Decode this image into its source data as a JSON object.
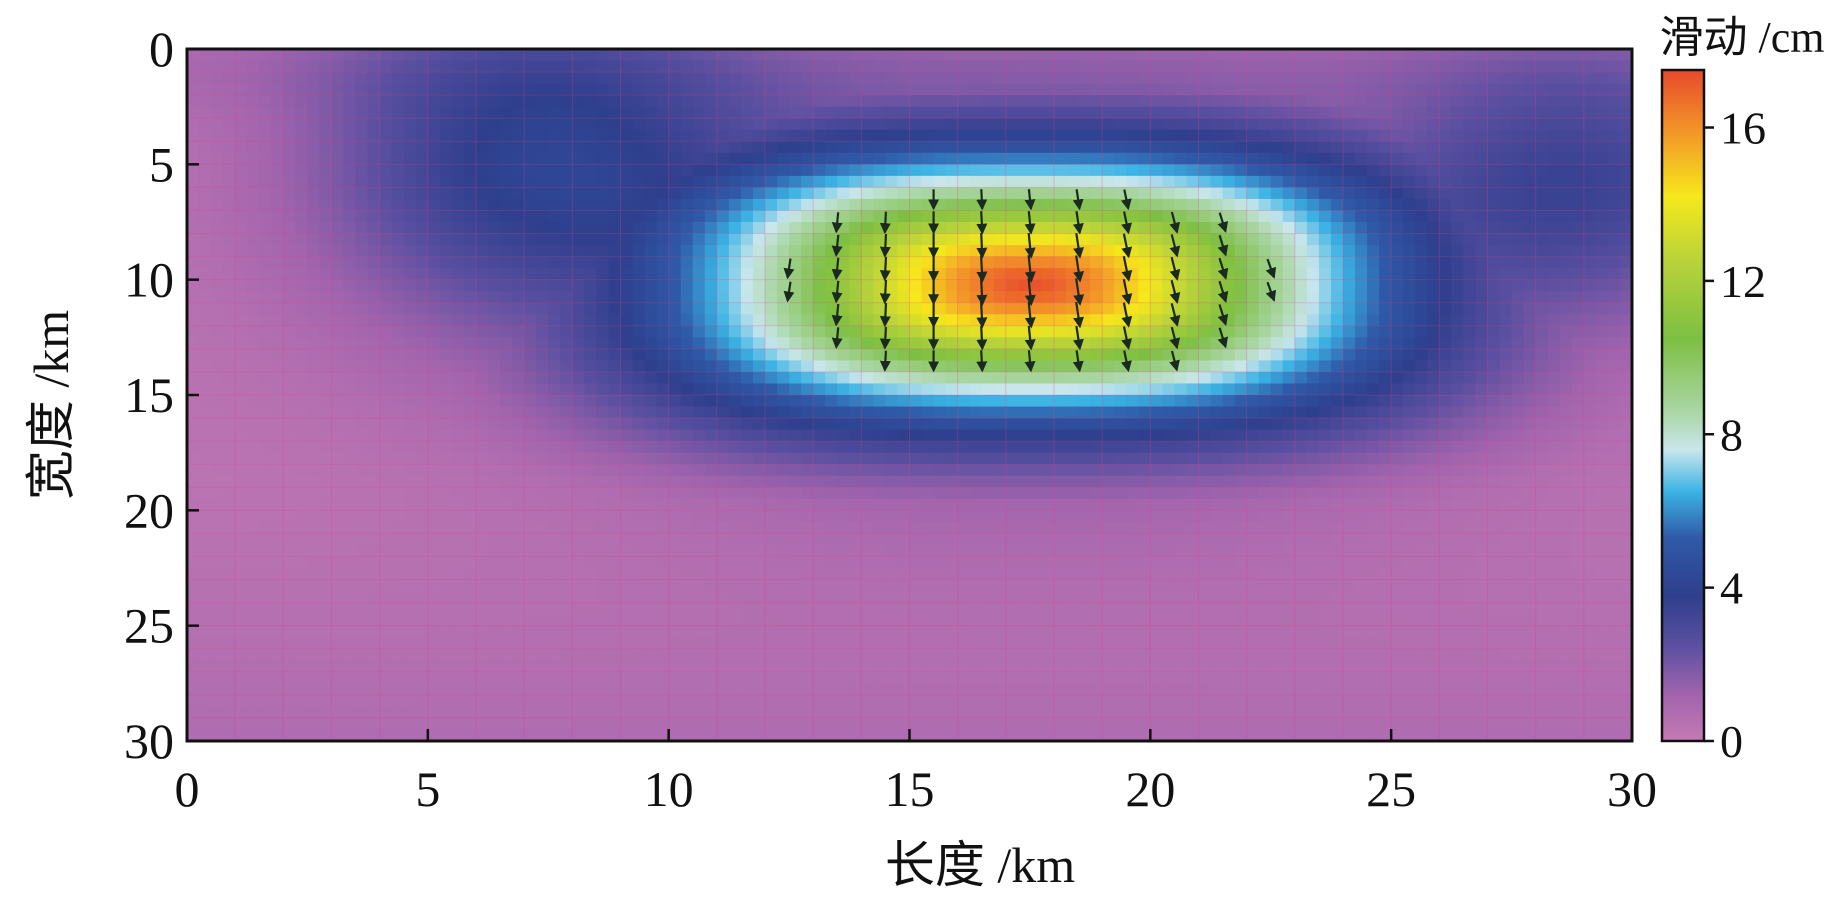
{
  "chart_data": {
    "type": "heatmap",
    "xlabel": "长度 /km",
    "ylabel": "宽度 /km",
    "colorbar_label": "滑动 /cm",
    "xlim": [
      0,
      30
    ],
    "ylim": [
      0,
      30
    ],
    "y_inverted": true,
    "x_ticks": [
      "0",
      "5",
      "10",
      "15",
      "20",
      "25",
      "30"
    ],
    "y_ticks": [
      "0",
      "5",
      "10",
      "15",
      "20",
      "25",
      "30"
    ],
    "colorbar_range": [
      0,
      17.5
    ],
    "colorbar_ticks": [
      "0",
      "4",
      "8",
      "12",
      "16"
    ],
    "colormap": [
      {
        "value": 0,
        "color": "#c47ab4"
      },
      {
        "value": 1.2,
        "color": "#a264ad"
      },
      {
        "value": 2.5,
        "color": "#5a4fa0"
      },
      {
        "value": 3.8,
        "color": "#2e3f8d"
      },
      {
        "value": 5.3,
        "color": "#2f5aa8"
      },
      {
        "value": 6.5,
        "color": "#3bb3e4"
      },
      {
        "value": 7.6,
        "color": "#c9e6ec"
      },
      {
        "value": 8.6,
        "color": "#a9d6a4"
      },
      {
        "value": 10.5,
        "color": "#7dbf42"
      },
      {
        "value": 12.5,
        "color": "#b8d33a"
      },
      {
        "value": 14.2,
        "color": "#f6e81c"
      },
      {
        "value": 15.8,
        "color": "#f39a28"
      },
      {
        "value": 17.5,
        "color": "#e8492c"
      }
    ],
    "slip_peak": {
      "x": 17.5,
      "y": 10.2,
      "value": 17.3
    },
    "grid": true,
    "vectors": true
  }
}
